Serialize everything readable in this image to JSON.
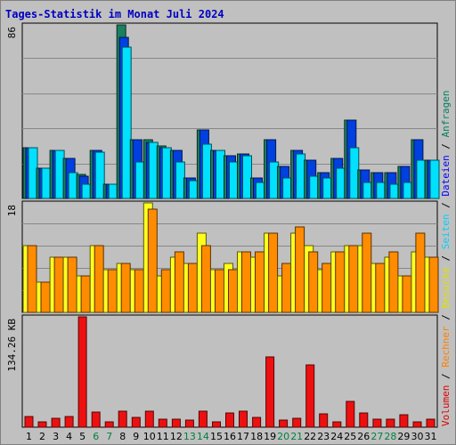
{
  "page": {
    "title": "Tages-Statistik im Monat Juli 2024",
    "colors": {
      "background": "#c0c0c0",
      "title": "#0000c0",
      "weekday_label": "#000000",
      "weekend_label": "#008040"
    }
  },
  "chart_data": {
    "type": "bar",
    "title": "Tages-Statistik im Monat Juli 2024",
    "categories": [
      "1",
      "2",
      "3",
      "4",
      "5",
      "6",
      "7",
      "8",
      "9",
      "10",
      "11",
      "12",
      "13",
      "14",
      "15",
      "16",
      "17",
      "18",
      "19",
      "20",
      "21",
      "22",
      "23",
      "24",
      "25",
      "26",
      "27",
      "28",
      "29",
      "30",
      "31"
    ],
    "weekend_days": [
      "6",
      "7",
      "13",
      "14",
      "20",
      "21",
      "27",
      "28"
    ],
    "legend": {
      "placement": "right",
      "entries": [
        {
          "label": "Volumen",
          "color": "#e00000"
        },
        {
          "label": "Rechner",
          "color": "#ff8000"
        },
        {
          "label": "Besuche",
          "color": "#e0e000"
        },
        {
          "label": "Seiten",
          "color": "#00d0ff"
        },
        {
          "label": "Dateien",
          "color": "#0000ff"
        },
        {
          "label": "Anfragen",
          "color": "#008060"
        }
      ],
      "separator": " / "
    },
    "panels": [
      {
        "id": "requests",
        "max_label": "86",
        "ylim": [
          0,
          86
        ],
        "grid": true,
        "series": [
          {
            "name": "Anfragen",
            "color": "#1a8060",
            "values": [
              25,
              15,
              24,
              20,
              12,
              24,
              7,
              86,
              29,
              29,
              26,
              24,
              10,
              34,
              24,
              21,
              22,
              10,
              29,
              16,
              24,
              19,
              13,
              20,
              39,
              14,
              13,
              13,
              16,
              29,
              19
            ]
          },
          {
            "name": "Dateien",
            "color": "#0040e0",
            "values": [
              25,
              15,
              24,
              20,
              11,
              24,
              7,
              80,
              29,
              28,
              25,
              24,
              10,
              34,
              24,
              21,
              22,
              10,
              29,
              16,
              24,
              19,
              13,
              20,
              39,
              14,
              13,
              13,
              16,
              29,
              19
            ]
          },
          {
            "name": "Seiten",
            "color": "#00e0ff",
            "values": [
              25,
              15,
              24,
              13,
              7,
              23,
              7,
              75,
              18,
              28,
              25,
              18,
              9,
              27,
              24,
              18,
              21,
              8,
              18,
              10,
              22,
              11,
              10,
              15,
              25,
              8,
              8,
              7,
              8,
              19,
              19
            ]
          }
        ]
      },
      {
        "id": "visits",
        "max_label": "18",
        "ylim": [
          0,
          18
        ],
        "grid": true,
        "series": [
          {
            "name": "Besuche",
            "color": "#ffff20",
            "values": [
              11,
              5,
              9,
              9,
              6,
              11,
              7,
              8,
              7,
              18,
              6,
              9,
              8,
              13,
              7,
              8,
              10,
              9,
              13,
              6,
              13,
              11,
              7,
              10,
              11,
              11,
              8,
              9,
              6,
              10,
              9
            ]
          },
          {
            "name": "Rechner",
            "color": "#ff8c00",
            "values": [
              11,
              5,
              9,
              9,
              6,
              11,
              7,
              8,
              7,
              17,
              7,
              10,
              8,
              11,
              7,
              7,
              10,
              10,
              13,
              8,
              14,
              10,
              8,
              10,
              11,
              13,
              8,
              10,
              6,
              13,
              9
            ]
          }
        ]
      },
      {
        "id": "volume",
        "max_label": "134.26 KB",
        "ylim": [
          0,
          134.26
        ],
        "grid": false,
        "series": [
          {
            "name": "Volumen",
            "color": "#ee1010",
            "values": [
              13,
              6,
              11,
              13,
              134,
              18,
              6,
              19,
              12,
              20,
              10,
              10,
              9,
              19,
              6,
              17,
              19,
              12,
              86,
              9,
              11,
              76,
              16,
              6,
              31,
              17,
              10,
              10,
              15,
              7,
              10
            ]
          }
        ]
      }
    ]
  }
}
